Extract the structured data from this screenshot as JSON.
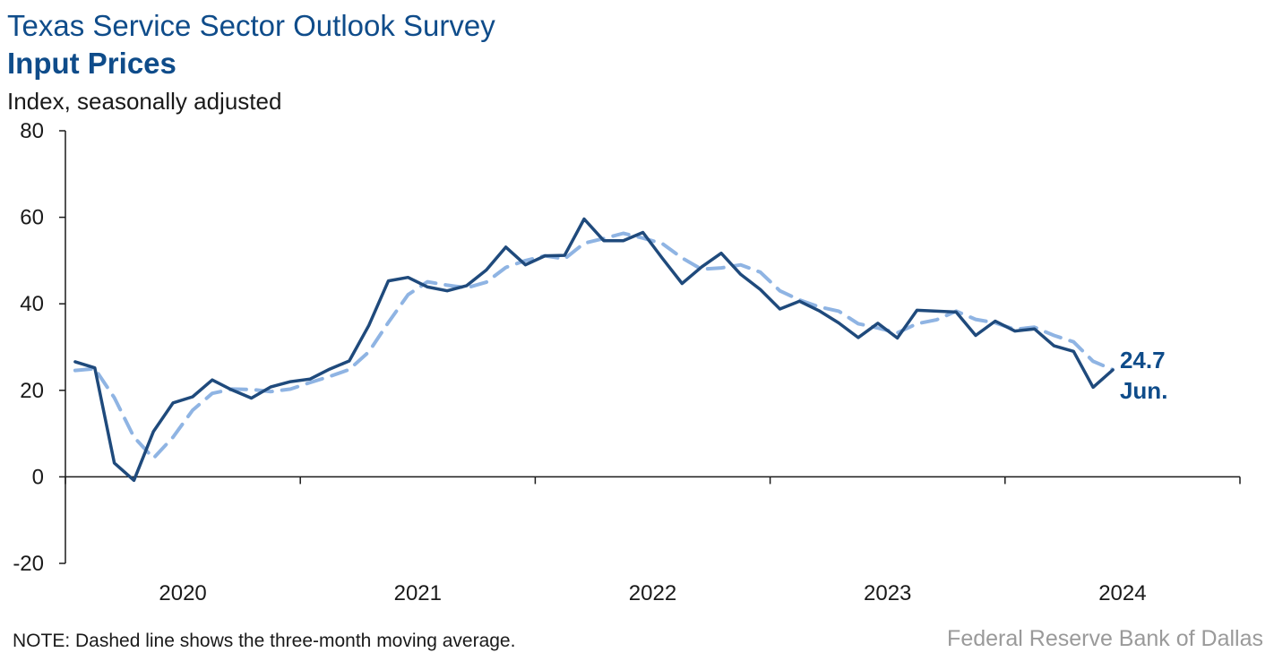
{
  "header": {
    "title": "Texas Service Sector Outlook Survey",
    "subtitle": "Input Prices",
    "units": "Index, seasonally adjusted"
  },
  "footer": {
    "note": "NOTE: Dashed line shows the three-month moving average.",
    "source": "Federal Reserve Bank of Dallas"
  },
  "colors": {
    "series_main": "#1f4a7c",
    "series_avg": "#8fb4e3",
    "axis": "#1a1a1a",
    "title": "#0f4c8a"
  },
  "chart_data": {
    "type": "line",
    "title": "Input Prices",
    "ylabel": "Index, seasonally adjusted",
    "ylim": [
      -20,
      80
    ],
    "yticks": [
      -20,
      0,
      20,
      40,
      60,
      80
    ],
    "xlim": [
      "2020-01",
      "2024-12"
    ],
    "xticks": [
      "2020",
      "2021",
      "2022",
      "2023",
      "2024"
    ],
    "grid": false,
    "legend": "none",
    "x": [
      "2020-01",
      "2020-02",
      "2020-03",
      "2020-04",
      "2020-05",
      "2020-06",
      "2020-07",
      "2020-08",
      "2020-09",
      "2020-10",
      "2020-11",
      "2020-12",
      "2021-01",
      "2021-02",
      "2021-03",
      "2021-04",
      "2021-05",
      "2021-06",
      "2021-07",
      "2021-08",
      "2021-09",
      "2021-10",
      "2021-11",
      "2021-12",
      "2022-01",
      "2022-02",
      "2022-03",
      "2022-04",
      "2022-05",
      "2022-06",
      "2022-07",
      "2022-08",
      "2022-09",
      "2022-10",
      "2022-11",
      "2022-12",
      "2023-01",
      "2023-02",
      "2023-03",
      "2023-04",
      "2023-05",
      "2023-06",
      "2023-07",
      "2023-08",
      "2023-09",
      "2023-10",
      "2023-11",
      "2023-12",
      "2024-01",
      "2024-02",
      "2024-03",
      "2024-04",
      "2024-05",
      "2024-06"
    ],
    "series": [
      {
        "style": "solid",
        "values": [
          26.6,
          25.2,
          3.2,
          -0.8,
          10.5,
          17.1,
          18.5,
          22.4,
          20.1,
          18.2,
          20.8,
          22.0,
          22.6,
          24.9,
          26.8,
          35.0,
          45.3,
          46.1,
          43.9,
          43.0,
          44.2,
          47.8,
          53.1,
          49.0,
          51.1,
          51.2,
          59.6,
          54.6,
          54.6,
          56.5,
          50.5,
          44.7,
          48.5,
          51.7,
          46.8,
          43.3,
          38.8,
          40.6,
          38.4,
          35.6,
          32.2,
          35.5,
          32.1,
          38.5,
          38.3,
          38.1,
          32.7,
          36.0,
          33.7,
          34.2,
          30.3,
          29.0,
          20.7,
          24.7
        ]
      },
      {
        "style": "dashed",
        "values": [
          24.6,
          25.0,
          18.3,
          9.2,
          4.3,
          9.2,
          15.4,
          19.3,
          20.3,
          20.2,
          19.7,
          20.3,
          21.8,
          23.2,
          24.8,
          28.9,
          35.7,
          42.1,
          45.1,
          44.3,
          43.7,
          45.0,
          48.4,
          50.0,
          51.1,
          50.4,
          54.0,
          55.1,
          56.3,
          55.2,
          53.9,
          50.6,
          48.0,
          48.3,
          49.0,
          47.3,
          43.0,
          40.9,
          39.3,
          38.3,
          35.4,
          34.4,
          33.3,
          35.4,
          36.3,
          38.3,
          36.4,
          35.6,
          34.1,
          34.6,
          32.7,
          31.2,
          26.7,
          24.8
        ]
      }
    ],
    "annotation": {
      "value": "24.7",
      "label": "Jun."
    }
  }
}
